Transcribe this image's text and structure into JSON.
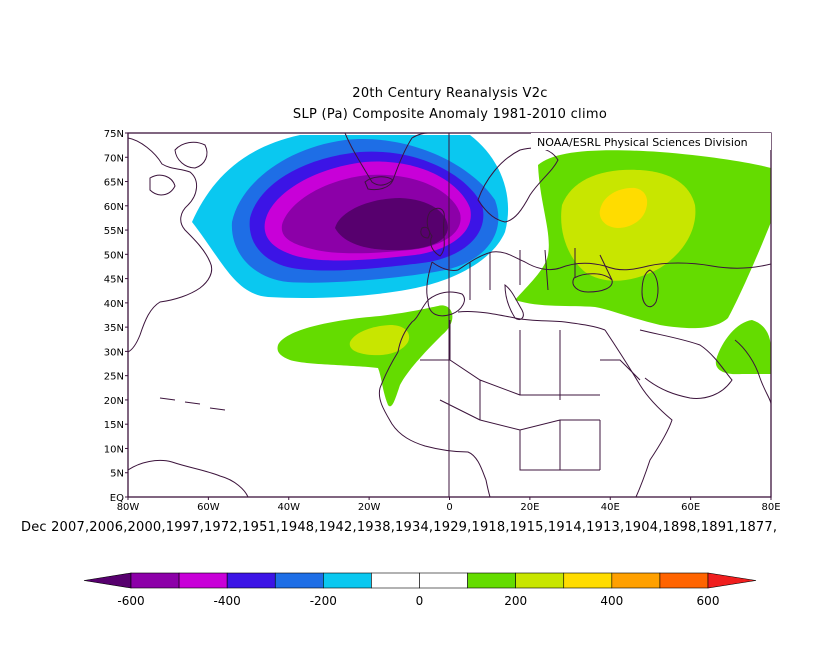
{
  "chart_data": {
    "type": "contour-map",
    "title": "20th Century Reanalysis V2c",
    "subtitle": "SLP (Pa) Composite Anomaly 1981-2010 climo",
    "credit": "NOAA/ESRL Physical Sciences Division",
    "composite_label": "Dec 2007,2006,2000,1997,1972,1951,1948,1942,1938,1934,1929,1918,1915,1914,1913,1904,1898,1891,1877,",
    "lon_range": [
      -80,
      80
    ],
    "lat_range": [
      0,
      75
    ],
    "y_ticks": [
      "75N",
      "70N",
      "65N",
      "60N",
      "55N",
      "50N",
      "45N",
      "40N",
      "35N",
      "30N",
      "25N",
      "20N",
      "15N",
      "10N",
      "5N",
      "EQ"
    ],
    "x_ticks": [
      "80W",
      "60W",
      "40W",
      "20W",
      "0",
      "20E",
      "40E",
      "60E",
      "80E"
    ],
    "colorbar": {
      "ticks": [
        "-600",
        "-400",
        "-200",
        "0",
        "200",
        "400",
        "600"
      ],
      "colors": [
        "#57006e",
        "#8c00a8",
        "#c800d8",
        "#3c14e6",
        "#1e6ee6",
        "#0ac8f0",
        "#ffffff",
        "#ffffff",
        "#64dc00",
        "#c8e600",
        "#ffdc00",
        "#ffa000",
        "#ff6400",
        "#f01e1e"
      ]
    },
    "anomaly_centers": [
      {
        "region": "North Atlantic (SW of Iceland)",
        "approx_lon": -12,
        "approx_lat": 56,
        "max_value_pa": -600
      },
      {
        "region": "Northwest Russia",
        "approx_lon": 42,
        "approx_lat": 60,
        "max_value_pa": 400
      },
      {
        "region": "Azores / subtropical Atlantic",
        "approx_lon": -20,
        "approx_lat": 32,
        "max_value_pa": 200
      }
    ]
  }
}
